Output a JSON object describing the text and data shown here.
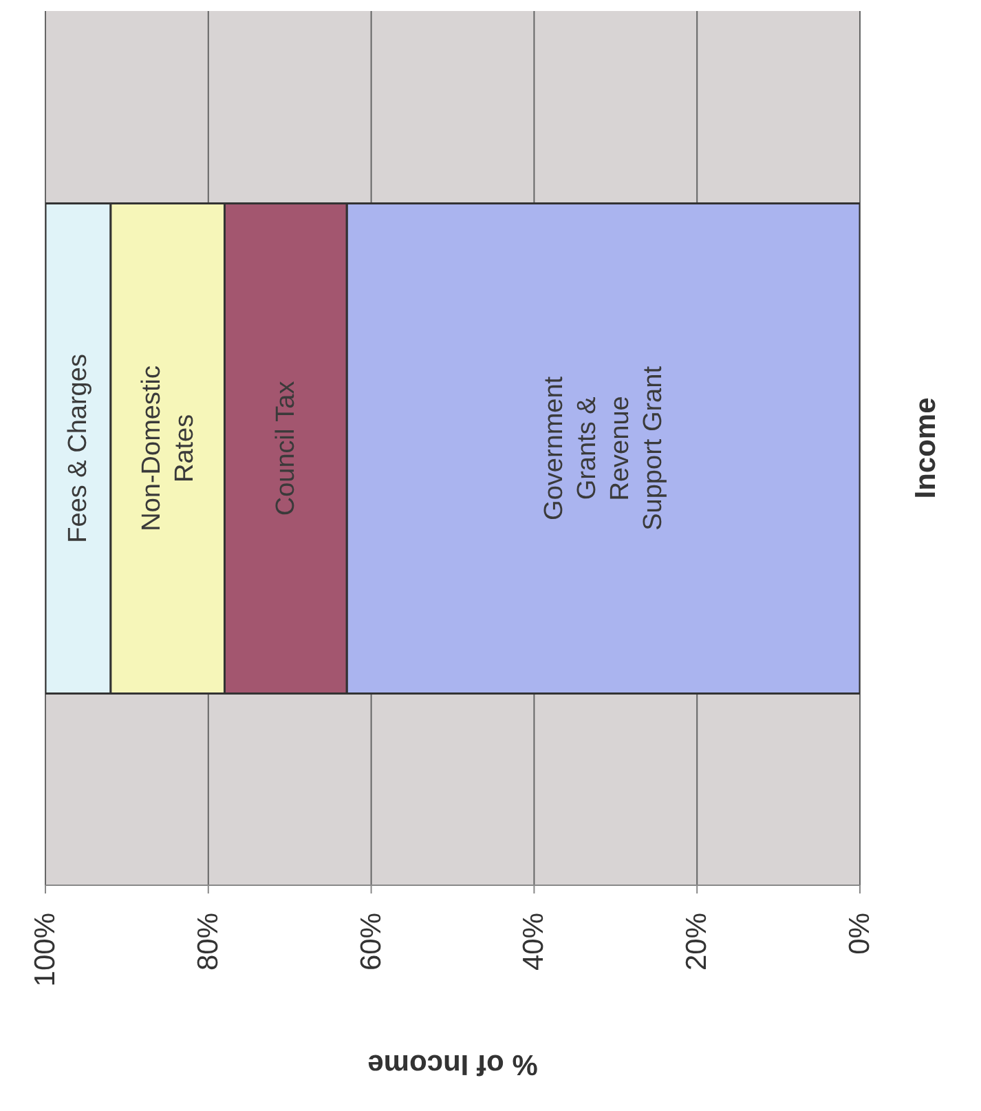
{
  "chart_data": {
    "type": "bar",
    "stacked": true,
    "orientation": "horizontal",
    "categories": [
      "Income"
    ],
    "xlabel": "% of Income",
    "series": [
      {
        "name": "Government Grants & Revenue Support Grant",
        "color": "#aab4ef",
        "values": [
          63
        ]
      },
      {
        "name": "Council Tax",
        "color": "#a3566f",
        "values": [
          15
        ]
      },
      {
        "name": "Non-Domestic Rates",
        "color": "#f6f6b9",
        "values": [
          14
        ]
      },
      {
        "name": "Fees & Charges",
        "color": "#e0f3f8",
        "values": [
          8
        ]
      }
    ],
    "xlim": [
      100,
      0
    ],
    "xticks": [
      {
        "value": 100,
        "label": "100%"
      },
      {
        "value": 80,
        "label": "80%"
      },
      {
        "value": 60,
        "label": "60%"
      },
      {
        "value": 40,
        "label": "40%"
      },
      {
        "value": 20,
        "label": "20%"
      },
      {
        "value": 0,
        "label": "0%"
      }
    ],
    "grid": "x"
  }
}
